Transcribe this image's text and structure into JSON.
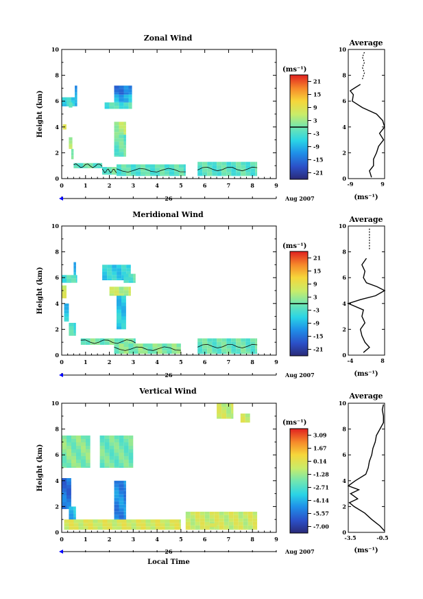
{
  "figure": {
    "xlabel_bottom": "Local Time",
    "date_label": "Aug 2007",
    "day_label": "26",
    "x_ticks": [
      "0",
      "1",
      "2",
      "3",
      "4",
      "5",
      "6",
      "7",
      "8",
      "9"
    ],
    "y_ticks": [
      "0",
      "2",
      "4",
      "6",
      "8",
      "10"
    ],
    "ylabel": "Height (km)",
    "unit_label": "(ms⁻¹)",
    "avg_title": "Average",
    "avg_unit": "(ms⁻¹)"
  },
  "chart_data": [
    {
      "type": "heatmap",
      "title": "Zonal Wind",
      "xlabel": "",
      "ylabel": "Height (km)",
      "xlim": [
        0,
        9
      ],
      "ylim": [
        0,
        10
      ],
      "colorbar": {
        "unit": "(ms⁻¹)",
        "ticks": [
          "21",
          "15",
          "9",
          "3",
          "-3",
          "-9",
          "-15",
          "-21"
        ],
        "range": [
          -24,
          24
        ]
      },
      "cells": [
        {
          "x0": 0,
          "x1": 0.55,
          "y0": 5.6,
          "y1": 6.3,
          "v": -6
        },
        {
          "x0": 0.55,
          "x1": 0.65,
          "y0": 5.6,
          "y1": 7.2,
          "v": -11
        },
        {
          "x0": 0.3,
          "x1": 0.45,
          "y0": 5.5,
          "y1": 5.9,
          "v": -4
        },
        {
          "x0": 2.2,
          "x1": 2.95,
          "y0": 6.5,
          "y1": 7.2,
          "v": -14
        },
        {
          "x0": 2.2,
          "x1": 2.95,
          "y0": 5.9,
          "y1": 6.5,
          "v": -9
        },
        {
          "x0": 1.8,
          "x1": 2.95,
          "y0": 5.4,
          "y1": 5.9,
          "v": -3
        },
        {
          "x0": 2.2,
          "x1": 2.7,
          "y0": 3.4,
          "y1": 4.4,
          "v": 4
        },
        {
          "x0": 2.2,
          "x1": 2.7,
          "y0": 1.7,
          "y1": 3.4,
          "v": -1
        },
        {
          "x0": 0.3,
          "x1": 0.45,
          "y0": 2.3,
          "y1": 3.2,
          "v": 5
        },
        {
          "x0": 0.4,
          "x1": 0.5,
          "y0": 1.5,
          "y1": 2.3,
          "v": 3
        },
        {
          "x0": 0.5,
          "x1": 1.7,
          "y0": 0.8,
          "y1": 1.2,
          "v": -1
        },
        {
          "x0": 1.7,
          "x1": 2.3,
          "y0": 0.3,
          "y1": 0.9,
          "v": -1
        },
        {
          "x0": 2.3,
          "x1": 5.2,
          "y0": 0.2,
          "y1": 1.1,
          "v": -2
        },
        {
          "x0": 5.7,
          "x1": 8.2,
          "y0": 0.2,
          "y1": 1.3,
          "v": -2
        },
        {
          "x0": 0.05,
          "x1": 0.2,
          "y0": 3.8,
          "y1": 4.2,
          "v": 6
        }
      ],
      "average_profile": {
        "xlim": [
          -9,
          9
        ],
        "xticks": [
          "-9",
          "9"
        ],
        "height": [
          0.1,
          0.6,
          1.0,
          1.5,
          2.0,
          2.5,
          3.0,
          3.5,
          4.0,
          4.5,
          5.0,
          5.5,
          6.0,
          6.5,
          6.8,
          7.0,
          7.3
        ],
        "value": [
          2.5,
          1.5,
          3.5,
          3.5,
          5.0,
          6.0,
          8.5,
          6.5,
          9.0,
          8.0,
          5.0,
          -2.0,
          -7.0,
          -6.5,
          -8.0,
          -6.0,
          -3.0
        ],
        "dashed_height": [
          7.7,
          8.2,
          8.6,
          9.0,
          9.4,
          9.8
        ],
        "dashed_value": [
          -2.0,
          -1.0,
          -2.0,
          -1.0,
          -2.0,
          -1.0
        ]
      }
    },
    {
      "type": "heatmap",
      "title": "Meridional Wind",
      "xlabel": "",
      "ylabel": "Height (km)",
      "xlim": [
        0,
        9
      ],
      "ylim": [
        0,
        10
      ],
      "colorbar": {
        "unit": "(ms⁻¹)",
        "ticks": [
          "21",
          "15",
          "9",
          "3",
          "-3",
          "-9",
          "-15",
          "-21"
        ],
        "range": [
          -24,
          24
        ]
      },
      "cells": [
        {
          "x0": 0,
          "x1": 0.65,
          "y0": 5.6,
          "y1": 6.2,
          "v": -3
        },
        {
          "x0": 0.5,
          "x1": 0.6,
          "y0": 6.2,
          "y1": 7.2,
          "v": -8
        },
        {
          "x0": 1.7,
          "x1": 2.9,
          "y0": 5.8,
          "y1": 7.0,
          "v": -6
        },
        {
          "x0": 2.6,
          "x1": 3.1,
          "y0": 5.6,
          "y1": 6.3,
          "v": -2
        },
        {
          "x0": 2.0,
          "x1": 2.9,
          "y0": 4.6,
          "y1": 5.3,
          "v": 5
        },
        {
          "x0": 2.3,
          "x1": 2.7,
          "y0": 2.0,
          "y1": 4.6,
          "v": -7
        },
        {
          "x0": 0,
          "x1": 0.2,
          "y0": 4.4,
          "y1": 5.4,
          "v": 6
        },
        {
          "x0": 0.1,
          "x1": 0.3,
          "y0": 2.6,
          "y1": 4.0,
          "v": -7
        },
        {
          "x0": 0.3,
          "x1": 0.6,
          "y0": 1.5,
          "y1": 2.5,
          "v": -3
        },
        {
          "x0": 0.8,
          "x1": 3.1,
          "y0": 0.8,
          "y1": 1.3,
          "v": 0
        },
        {
          "x0": 2.2,
          "x1": 5.0,
          "y0": 0.1,
          "y1": 0.9,
          "v": 1
        },
        {
          "x0": 5.7,
          "x1": 8.2,
          "y0": 0.1,
          "y1": 1.3,
          "v": -1
        }
      ],
      "average_profile": {
        "xlim": [
          -4,
          8
        ],
        "xticks": [
          "-4",
          "8"
        ],
        "height": [
          0.2,
          0.6,
          1.0,
          1.5,
          2.0,
          2.5,
          3.0,
          3.5,
          4.0,
          4.3,
          4.6,
          5.0,
          5.3,
          5.6,
          6.0,
          6.5,
          7.0,
          7.5
        ],
        "value": [
          1.0,
          3.0,
          1.5,
          0.5,
          0.0,
          1.5,
          0.5,
          1.0,
          -4.0,
          0.0,
          5.0,
          8.0,
          5.5,
          2.0,
          1.0,
          1.5,
          0.5,
          2.0
        ],
        "dashed_height": [
          8.2,
          8.8,
          9.4,
          9.8
        ],
        "dashed_value": [
          3.0,
          3.0,
          3.0,
          3.0
        ]
      }
    },
    {
      "type": "heatmap",
      "title": "Vertical Wind",
      "xlabel": "Local Time",
      "ylabel": "Height (km)",
      "xlim": [
        0,
        9
      ],
      "ylim": [
        0,
        10
      ],
      "colorbar": {
        "unit": "(ms⁻¹)",
        "ticks": [
          "3.09",
          "1.67",
          "0.14",
          "-1.28",
          "-2.71",
          "-4.14",
          "-5.57",
          "-7.00"
        ],
        "range": [
          -7.71,
          3.8
        ]
      },
      "cells": [
        {
          "x0": 0,
          "x1": 1.2,
          "y0": 5.0,
          "y1": 7.5,
          "v": -1.7
        },
        {
          "x0": 1.6,
          "x1": 3.0,
          "y0": 5.0,
          "y1": 7.5,
          "v": -2.0
        },
        {
          "x0": 0,
          "x1": 0.4,
          "y0": 1.8,
          "y1": 4.2,
          "v": -5.5
        },
        {
          "x0": 0.3,
          "x1": 0.6,
          "y0": 0.8,
          "y1": 2.0,
          "v": -4.0
        },
        {
          "x0": 2.2,
          "x1": 2.7,
          "y0": 0.8,
          "y1": 4.0,
          "v": -5.0
        },
        {
          "x0": 0.1,
          "x1": 5.0,
          "y0": 0.2,
          "y1": 1.0,
          "v": -0.2
        },
        {
          "x0": 5.2,
          "x1": 8.2,
          "y0": 0.2,
          "y1": 1.6,
          "v": -0.4
        },
        {
          "x0": 6.2,
          "x1": 6.5,
          "y0": 0.4,
          "y1": 0.7,
          "v": 0.5
        },
        {
          "x0": 6.5,
          "x1": 7.2,
          "y0": 8.8,
          "y1": 10.0,
          "v": -0.5
        },
        {
          "x0": 7.5,
          "x1": 7.9,
          "y0": 8.5,
          "y1": 9.2,
          "v": -0.4
        }
      ],
      "average_profile": {
        "xlim": [
          -3.6,
          -0.5
        ],
        "xticks": [
          "-3.5",
          "-0.5"
        ],
        "height": [
          0.1,
          0.5,
          1.0,
          1.5,
          2.0,
          2.3,
          2.6,
          3.0,
          3.3,
          3.6,
          4.0,
          4.5,
          5.0,
          5.5,
          6.0,
          6.5,
          7.0,
          7.5,
          8.0,
          8.5,
          9.0,
          9.5,
          9.9
        ],
        "value": [
          -0.5,
          -0.9,
          -1.6,
          -2.2,
          -3.1,
          -3.5,
          -2.8,
          -3.4,
          -2.7,
          -3.6,
          -3.0,
          -2.1,
          -1.9,
          -1.8,
          -1.6,
          -1.5,
          -1.3,
          -1.2,
          -0.9,
          -0.6,
          -0.6,
          -0.7,
          -0.6
        ]
      }
    }
  ]
}
